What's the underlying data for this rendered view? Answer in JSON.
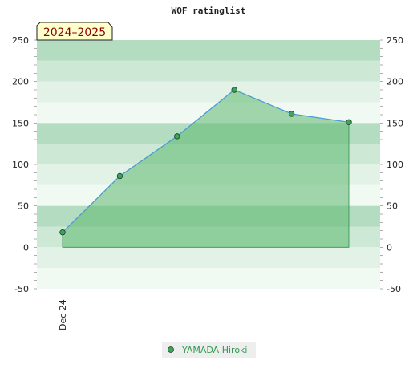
{
  "chart_data": {
    "type": "area",
    "title": "WOF ratinglist",
    "season_label": "2024–2025",
    "xlabel": "",
    "ylabel": "",
    "x_ticks": [
      "Dec 24"
    ],
    "ylim": [
      -50,
      250
    ],
    "y_ticks": [
      -50,
      0,
      50,
      100,
      150,
      200,
      250
    ],
    "y_ticks_text": [
      "-50",
      "0",
      "50",
      "100",
      "150",
      "200",
      "250"
    ],
    "legend_position": "bottom-center",
    "series": [
      {
        "name": "YAMADA Hiroki",
        "values": [
          18,
          86,
          134,
          190,
          161,
          151
        ]
      }
    ],
    "colors": {
      "line": "#4a9bd8",
      "area_fill": "#5cb870",
      "marker_fill": "#3fa35a",
      "marker_stroke": "#1f3f2a",
      "band_dark": "#b3dcc0",
      "band_mid": "#cde8d5",
      "band_light": "#e3f2e7",
      "band_lightest": "#f1f9f3",
      "season_box_fill": "#ffffcc",
      "legend_text": "#2f9a4f"
    }
  }
}
